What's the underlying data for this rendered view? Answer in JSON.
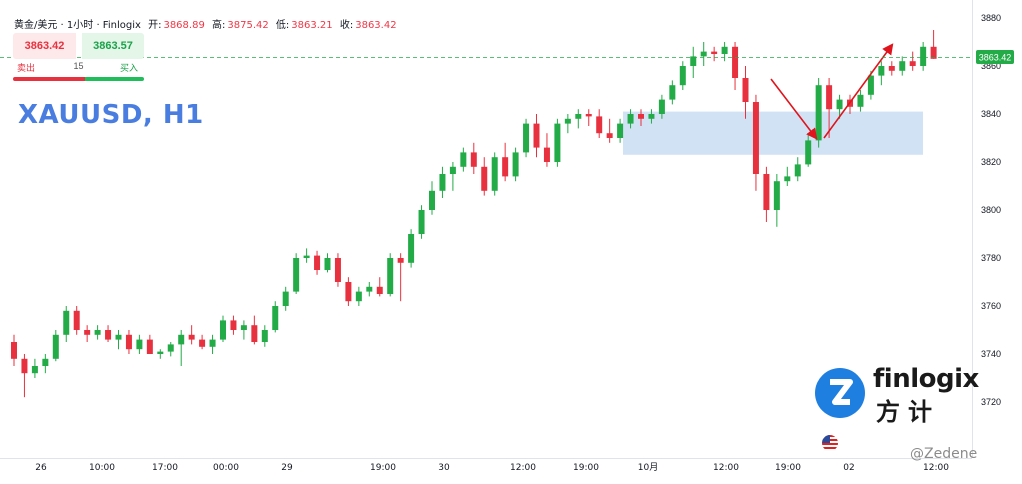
{
  "header": {
    "symbol_title": "黄金/美元 · 1小时 · Finlogix",
    "open_label": "开:",
    "open_value": "3868.89",
    "high_label": "高:",
    "high_value": "3875.42",
    "low_label": "低:",
    "low_value": "3863.21",
    "close_label": "收:",
    "close_value": "3863.42"
  },
  "trade_panel": {
    "sell_price": "3863.42",
    "buy_price": "3863.57",
    "sell_label": "卖出",
    "quantity": "15",
    "buy_label": "买入"
  },
  "symbol_label": "XAUUSD, H1",
  "logo": {
    "mark": "Z",
    "name_en": "finlogix",
    "name_cn": "方计"
  },
  "watermark": "@Zedene",
  "colors": {
    "up": "#22ab47",
    "down": "#e8313f",
    "zone": "#c9ddf3",
    "arrow": "#e0141c",
    "price_label": "#22ab47"
  },
  "chart_data": {
    "type": "candlestick",
    "title": "",
    "xlabel": "",
    "ylabel": "",
    "ylim": [
      3705,
      3887
    ],
    "y_ticks": [
      3720,
      3740,
      3760,
      3780,
      3800,
      3820,
      3840,
      3860,
      3880
    ],
    "x_tick_labels": [
      "26",
      "10:00",
      "17:00",
      "00:00",
      "29",
      "19:00",
      "30",
      "12:00",
      "19:00",
      "10月",
      "12:00",
      "19:00",
      "02",
      "12:00"
    ],
    "current_price": 3863.42,
    "current_price_label": "3863.42",
    "demand_zone": [
      3823,
      3841
    ],
    "grid": false,
    "candles": [
      [
        3745,
        3748,
        3735,
        3738
      ],
      [
        3738,
        3740,
        3722,
        3732
      ],
      [
        3732,
        3738,
        3730,
        3735
      ],
      [
        3735,
        3740,
        3732,
        3738
      ],
      [
        3738,
        3750,
        3737,
        3748
      ],
      [
        3748,
        3760,
        3745,
        3758
      ],
      [
        3758,
        3760,
        3748,
        3750
      ],
      [
        3750,
        3752,
        3745,
        3748
      ],
      [
        3748,
        3752,
        3746,
        3750
      ],
      [
        3750,
        3752,
        3745,
        3746
      ],
      [
        3746,
        3750,
        3742,
        3748
      ],
      [
        3748,
        3750,
        3740,
        3742
      ],
      [
        3742,
        3748,
        3740,
        3746
      ],
      [
        3746,
        3748,
        3740,
        3740
      ],
      [
        3740,
        3742,
        3738,
        3741
      ],
      [
        3741,
        3745,
        3739,
        3744
      ],
      [
        3744,
        3750,
        3735,
        3748
      ],
      [
        3748,
        3752,
        3744,
        3746
      ],
      [
        3746,
        3748,
        3742,
        3743
      ],
      [
        3743,
        3748,
        3740,
        3746
      ],
      [
        3746,
        3756,
        3745,
        3754
      ],
      [
        3754,
        3756,
        3748,
        3750
      ],
      [
        3750,
        3754,
        3746,
        3752
      ],
      [
        3752,
        3756,
        3744,
        3745
      ],
      [
        3745,
        3752,
        3743,
        3750
      ],
      [
        3750,
        3762,
        3749,
        3760
      ],
      [
        3760,
        3768,
        3758,
        3766
      ],
      [
        3766,
        3782,
        3765,
        3780
      ],
      [
        3780,
        3784,
        3778,
        3781
      ],
      [
        3781,
        3783,
        3773,
        3775
      ],
      [
        3775,
        3782,
        3774,
        3780
      ],
      [
        3780,
        3782,
        3768,
        3770
      ],
      [
        3770,
        3772,
        3760,
        3762
      ],
      [
        3762,
        3768,
        3760,
        3766
      ],
      [
        3766,
        3770,
        3764,
        3768
      ],
      [
        3768,
        3772,
        3764,
        3765
      ],
      [
        3765,
        3782,
        3764,
        3780
      ],
      [
        3780,
        3782,
        3762,
        3778
      ],
      [
        3778,
        3792,
        3776,
        3790
      ],
      [
        3790,
        3802,
        3788,
        3800
      ],
      [
        3800,
        3812,
        3798,
        3808
      ],
      [
        3808,
        3818,
        3805,
        3815
      ],
      [
        3815,
        3820,
        3808,
        3818
      ],
      [
        3818,
        3826,
        3816,
        3824
      ],
      [
        3824,
        3828,
        3815,
        3818
      ],
      [
        3818,
        3822,
        3806,
        3808
      ],
      [
        3808,
        3824,
        3806,
        3822
      ],
      [
        3822,
        3828,
        3812,
        3814
      ],
      [
        3814,
        3826,
        3812,
        3824
      ],
      [
        3824,
        3838,
        3822,
        3836
      ],
      [
        3836,
        3840,
        3822,
        3826
      ],
      [
        3826,
        3832,
        3818,
        3820
      ],
      [
        3820,
        3838,
        3818,
        3836
      ],
      [
        3836,
        3840,
        3832,
        3838
      ],
      [
        3838,
        3842,
        3834,
        3840
      ],
      [
        3840,
        3842,
        3835,
        3839
      ],
      [
        3839,
        3842,
        3830,
        3832
      ],
      [
        3832,
        3838,
        3828,
        3830
      ],
      [
        3830,
        3838,
        3828,
        3836
      ],
      [
        3836,
        3842,
        3834,
        3840
      ],
      [
        3840,
        3842,
        3835,
        3838
      ],
      [
        3838,
        3842,
        3836,
        3840
      ],
      [
        3840,
        3848,
        3838,
        3846
      ],
      [
        3846,
        3854,
        3844,
        3852
      ],
      [
        3852,
        3862,
        3850,
        3860
      ],
      [
        3860,
        3868,
        3855,
        3864
      ],
      [
        3864,
        3870,
        3860,
        3866
      ],
      [
        3866,
        3868,
        3862,
        3865
      ],
      [
        3865,
        3870,
        3862,
        3868
      ],
      [
        3868,
        3870,
        3850,
        3855
      ],
      [
        3855,
        3860,
        3838,
        3845
      ],
      [
        3845,
        3848,
        3808,
        3815
      ],
      [
        3815,
        3818,
        3795,
        3800
      ],
      [
        3800,
        3815,
        3793,
        3812
      ],
      [
        3812,
        3818,
        3810,
        3814
      ],
      [
        3814,
        3822,
        3812,
        3819
      ],
      [
        3819,
        3832,
        3818,
        3829
      ],
      [
        3829,
        3855,
        3826,
        3852
      ],
      [
        3852,
        3855,
        3830,
        3842
      ],
      [
        3842,
        3848,
        3838,
        3846
      ],
      [
        3846,
        3848,
        3840,
        3843
      ],
      [
        3843,
        3850,
        3841,
        3848
      ],
      [
        3848,
        3858,
        3846,
        3856
      ],
      [
        3856,
        3862,
        3852,
        3860
      ],
      [
        3860,
        3862,
        3856,
        3858
      ],
      [
        3858,
        3864,
        3856,
        3862
      ],
      [
        3862,
        3866,
        3858,
        3860
      ],
      [
        3860,
        3870,
        3858,
        3868
      ],
      [
        3868,
        3875,
        3863,
        3863
      ]
    ]
  }
}
